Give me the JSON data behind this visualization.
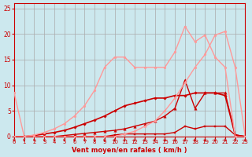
{
  "background_color": "#cce8ee",
  "grid_color": "#aaaaaa",
  "xlabel": "Vent moyen/en rafales ( km/h )",
  "xlim": [
    0,
    23
  ],
  "ylim": [
    0,
    26
  ],
  "yticks": [
    0,
    5,
    10,
    15,
    20,
    25
  ],
  "xticks": [
    0,
    1,
    2,
    3,
    4,
    5,
    6,
    7,
    8,
    9,
    10,
    11,
    12,
    13,
    14,
    15,
    16,
    17,
    18,
    19,
    20,
    21,
    22,
    23
  ],
  "series": [
    {
      "x": [
        0,
        1,
        2,
        3,
        4,
        5,
        6,
        7,
        8,
        9,
        10,
        11,
        12,
        13,
        14,
        15,
        16,
        17,
        18,
        19,
        20,
        21,
        22,
        23
      ],
      "y": [
        0,
        0,
        0,
        0,
        0,
        0,
        0,
        0,
        0,
        0,
        0.3,
        0.5,
        0.5,
        0.5,
        0.5,
        0.5,
        0.8,
        2.0,
        1.5,
        2.0,
        2.0,
        2.0,
        0.3,
        0
      ],
      "color": "#cc0000",
      "lw": 1.0,
      "marker": "s",
      "ms": 2.0
    },
    {
      "x": [
        0,
        1,
        2,
        3,
        4,
        5,
        6,
        7,
        8,
        9,
        10,
        11,
        12,
        13,
        14,
        15,
        16,
        17,
        18,
        19,
        20,
        21,
        22,
        23
      ],
      "y": [
        0,
        0,
        0,
        0,
        0,
        0.2,
        0.4,
        0.6,
        0.8,
        1.0,
        1.2,
        1.5,
        2.0,
        2.5,
        3.0,
        4.0,
        5.5,
        11.0,
        5.5,
        8.5,
        8.5,
        8.5,
        0.3,
        0
      ],
      "color": "#cc0000",
      "lw": 1.0,
      "marker": "^",
      "ms": 2.5
    },
    {
      "x": [
        0,
        1,
        2,
        3,
        4,
        5,
        6,
        7,
        8,
        9,
        10,
        11,
        12,
        13,
        14,
        15,
        16,
        17,
        18,
        19,
        20,
        21,
        22,
        23
      ],
      "y": [
        0,
        0,
        0.2,
        0.5,
        0.8,
        1.2,
        1.8,
        2.5,
        3.2,
        4.0,
        5.0,
        6.0,
        6.5,
        7.0,
        7.5,
        7.5,
        8.0,
        8.0,
        8.5,
        8.5,
        8.5,
        8.0,
        0.3,
        0
      ],
      "color": "#cc0000",
      "lw": 1.2,
      "marker": "D",
      "ms": 1.8
    },
    {
      "x": [
        0,
        1,
        2,
        3,
        4,
        5,
        6,
        7,
        8,
        9,
        10,
        11,
        12,
        13,
        14,
        15,
        16,
        17,
        18,
        19,
        20,
        21,
        22,
        23
      ],
      "y": [
        8.5,
        0,
        0.3,
        0.8,
        1.5,
        2.5,
        4.0,
        6.0,
        9.0,
        13.5,
        15.5,
        15.5,
        13.5,
        13.5,
        13.5,
        13.5,
        16.5,
        21.5,
        18.5,
        19.8,
        15.5,
        13.5,
        0,
        0
      ],
      "color": "#ff9999",
      "lw": 1.0,
      "marker": "o",
      "ms": 2.0
    },
    {
      "x": [
        0,
        1,
        2,
        3,
        4,
        5,
        6,
        7,
        8,
        9,
        10,
        11,
        12,
        13,
        14,
        15,
        16,
        17,
        18,
        19,
        20,
        21,
        22,
        23
      ],
      "y": [
        0,
        0,
        0,
        0,
        0,
        0,
        0,
        0,
        0,
        0,
        0,
        0.5,
        1.0,
        2.0,
        3.0,
        5.0,
        7.5,
        10.5,
        13.5,
        16.0,
        19.8,
        20.5,
        13.5,
        0
      ],
      "color": "#ff9999",
      "lw": 1.0,
      "marker": "o",
      "ms": 2.0
    }
  ],
  "axis_color": "#cc0000",
  "tick_color": "#cc0000",
  "label_color": "#cc0000"
}
